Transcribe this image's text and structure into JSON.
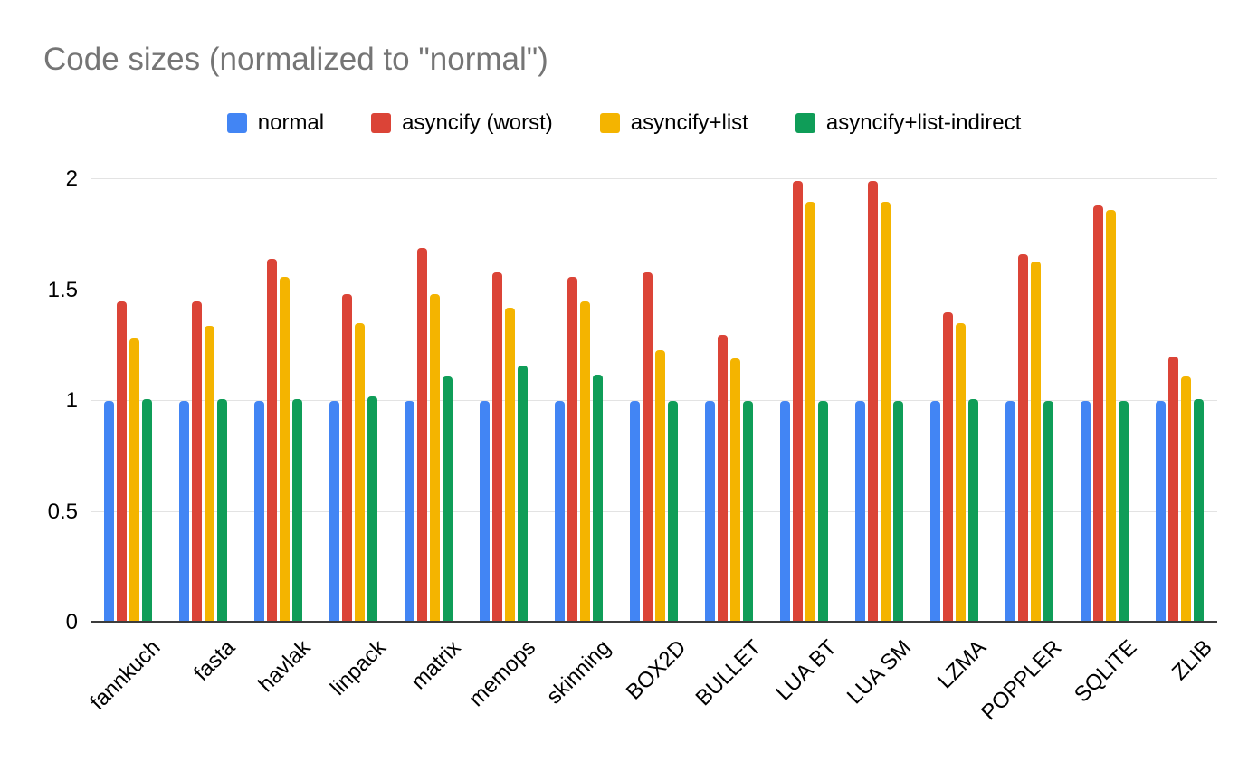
{
  "title": "Code sizes (normalized to \"normal\")",
  "chart_data": {
    "type": "bar",
    "title": "Code sizes (normalized to \"normal\")",
    "categories": [
      "fannkuch",
      "fasta",
      "havlak",
      "linpack",
      "matrix",
      "memops",
      "skinning",
      "BOX2D",
      "BULLET",
      "LUA BT",
      "LUA SM",
      "LZMA",
      "POPPLER",
      "SQLITE",
      "ZLIB"
    ],
    "series": [
      {
        "name": "normal",
        "color": "#4285F4",
        "values": [
          1.0,
          1.0,
          1.0,
          1.0,
          1.0,
          1.0,
          1.0,
          1.0,
          1.0,
          1.0,
          1.0,
          1.0,
          1.0,
          1.0,
          1.0
        ]
      },
      {
        "name": "asyncify (worst)",
        "color": "#DB4437",
        "values": [
          1.45,
          1.45,
          1.64,
          1.48,
          1.69,
          1.58,
          1.56,
          1.58,
          1.3,
          1.99,
          1.99,
          1.4,
          1.66,
          1.88,
          1.2
        ]
      },
      {
        "name": "asyncify+list",
        "color": "#F4B400",
        "values": [
          1.28,
          1.34,
          1.56,
          1.35,
          1.48,
          1.42,
          1.45,
          1.23,
          1.19,
          1.9,
          1.9,
          1.35,
          1.63,
          1.86,
          1.11
        ]
      },
      {
        "name": "asyncify+list-indirect",
        "color": "#0F9D58",
        "values": [
          1.01,
          1.01,
          1.01,
          1.02,
          1.11,
          1.16,
          1.12,
          1.0,
          1.0,
          1.0,
          1.0,
          1.01,
          1.0,
          1.0,
          1.01
        ]
      }
    ],
    "ylim": [
      0,
      2
    ],
    "y_ticks": [
      0,
      0.5,
      1,
      1.5,
      2
    ],
    "grid": true,
    "legend_position": "top",
    "background_color": "#ffffff",
    "title_color": "#757575"
  }
}
